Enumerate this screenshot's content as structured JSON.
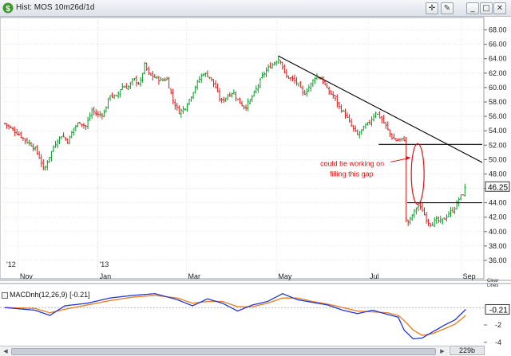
{
  "window": {
    "title": "Hist: MOS 10m26d/1d",
    "app_icon": "dollar-sign-icon",
    "toolbar": [
      {
        "name": "crosshair-icon",
        "glyph": "✛"
      },
      {
        "name": "paint-brush-icon",
        "glyph": "✎"
      },
      {
        "name": "minimize-icon",
        "glyph": "_"
      },
      {
        "name": "maximize-icon",
        "glyph": "□"
      },
      {
        "name": "close-icon",
        "glyph": "✕"
      }
    ]
  },
  "price_axis": {
    "ticks": [
      36,
      38,
      40,
      42,
      44,
      46,
      48,
      50,
      52,
      54,
      56,
      58,
      60,
      62,
      64,
      66,
      68
    ],
    "tick_labels": [
      "36.00",
      "38.00",
      "40.00",
      "42.00",
      "44.00",
      "46.00",
      "48.00",
      "50.00",
      "52.00",
      "54.00",
      "56.00",
      "58.00",
      "60.00",
      "62.00",
      "64.00",
      "66.00",
      "68.00"
    ],
    "range": [
      35.0,
      69.5
    ],
    "last_price_label": "46.25",
    "last_price": 46.25,
    "clear_label": "Clear Lines"
  },
  "time_axis": {
    "labels": [
      {
        "text": "'12",
        "day": 0
      },
      {
        "text": "Nov",
        "day": 9
      },
      {
        "text": "'13",
        "day": 62
      },
      {
        "text": "Jan",
        "day": 62
      },
      {
        "text": "Mar",
        "day": 121
      },
      {
        "text": "May",
        "day": 181
      },
      {
        "text": "Jul",
        "day": 242
      },
      {
        "text": "Sep",
        "day": 304
      }
    ],
    "range_days": [
      0,
      318
    ]
  },
  "macd": {
    "legend_text": "MACDnh(12,26,9)",
    "legend_value": "[-0.21]",
    "value_label": "-0.21",
    "value": -0.21,
    "ticks": [
      -2,
      -4
    ],
    "tick_labels": [
      "-2",
      "-4"
    ],
    "range": [
      -4.2,
      2.4
    ],
    "macd_color": "#1f35d6",
    "signal_color": "#ef7b1a"
  },
  "annotation": {
    "text_line1": "could be working on",
    "text_line2": "filling this gap",
    "color": "#e01010"
  },
  "bar_count": "229b",
  "colors": {
    "up": "#0a9a2a",
    "down": "#d81c1c",
    "trendline": "#000000"
  },
  "chart_data": {
    "type": "ohlc",
    "symbol": "MOS",
    "x_unit": "days since chart start (Oct 2012)",
    "trendlines": [
      {
        "x": [
          182,
          318
        ],
        "y": [
          64.4,
          49.6
        ],
        "label": "downtrend"
      },
      {
        "x": [
          249,
          318
        ],
        "y": [
          52.1,
          52.1
        ],
        "label": "gap top"
      },
      {
        "x": [
          268,
          318
        ],
        "y": [
          44.0,
          44.0
        ],
        "label": "gap bottom"
      }
    ],
    "gap_ellipse": {
      "center_x": 275,
      "center_y": 48.0,
      "y_half": 4.2
    },
    "price_path": [
      [
        0,
        55.0
      ],
      [
        5,
        54.2
      ],
      [
        10,
        53.4
      ],
      [
        14,
        52.6
      ],
      [
        18,
        52.0
      ],
      [
        21,
        51.2
      ],
      [
        24,
        49.8
      ],
      [
        26,
        48.4
      ],
      [
        30,
        50.6
      ],
      [
        34,
        52.4
      ],
      [
        38,
        53.4
      ],
      [
        42,
        52.5
      ],
      [
        46,
        54.4
      ],
      [
        50,
        55.2
      ],
      [
        54,
        54.6
      ],
      [
        58,
        56.8
      ],
      [
        62,
        56.2
      ],
      [
        66,
        56.4
      ],
      [
        70,
        59.0
      ],
      [
        74,
        58.6
      ],
      [
        78,
        60.2
      ],
      [
        82,
        60.0
      ],
      [
        86,
        61.2
      ],
      [
        90,
        60.4
      ],
      [
        93,
        63.2
      ],
      [
        96,
        61.8
      ],
      [
        100,
        61.4
      ],
      [
        104,
        61.0
      ],
      [
        108,
        61.2
      ],
      [
        112,
        58.2
      ],
      [
        116,
        56.6
      ],
      [
        120,
        57.2
      ],
      [
        124,
        58.8
      ],
      [
        128,
        60.6
      ],
      [
        132,
        62.0
      ],
      [
        136,
        61.6
      ],
      [
        140,
        60.2
      ],
      [
        144,
        58.0
      ],
      [
        148,
        58.8
      ],
      [
        152,
        59.4
      ],
      [
        156,
        58.0
      ],
      [
        160,
        57.2
      ],
      [
        164,
        58.4
      ],
      [
        168,
        60.0
      ],
      [
        172,
        61.8
      ],
      [
        176,
        62.8
      ],
      [
        180,
        63.6
      ],
      [
        183,
        64.1
      ],
      [
        187,
        61.6
      ],
      [
        191,
        61.2
      ],
      [
        195,
        60.6
      ],
      [
        199,
        59.0
      ],
      [
        203,
        60.2
      ],
      [
        207,
        61.6
      ],
      [
        211,
        61.2
      ],
      [
        215,
        59.6
      ],
      [
        219,
        58.8
      ],
      [
        223,
        57.2
      ],
      [
        227,
        56.2
      ],
      [
        231,
        54.6
      ],
      [
        235,
        53.4
      ],
      [
        239,
        54.4
      ],
      [
        243,
        55.2
      ],
      [
        247,
        56.6
      ],
      [
        251,
        55.6
      ],
      [
        255,
        54.2
      ],
      [
        258,
        53.0
      ],
      [
        261,
        52.6
      ],
      [
        264,
        52.8
      ],
      [
        266,
        42.0
      ],
      [
        269,
        41.2
      ],
      [
        272,
        42.6
      ],
      [
        275,
        43.6
      ],
      [
        278,
        43.0
      ],
      [
        281,
        41.6
      ],
      [
        284,
        41.0
      ],
      [
        287,
        41.6
      ],
      [
        290,
        41.4
      ],
      [
        293,
        41.8
      ],
      [
        296,
        42.6
      ],
      [
        299,
        43.0
      ],
      [
        302,
        44.4
      ],
      [
        305,
        45.2
      ],
      [
        307,
        46.25
      ]
    ],
    "macd_path": [
      [
        0,
        0.0
      ],
      [
        20,
        -0.3
      ],
      [
        30,
        -0.9
      ],
      [
        40,
        0.2
      ],
      [
        55,
        0.5
      ],
      [
        70,
        1.1
      ],
      [
        85,
        1.4
      ],
      [
        100,
        1.6
      ],
      [
        115,
        0.9
      ],
      [
        125,
        0.2
      ],
      [
        135,
        1.0
      ],
      [
        145,
        0.5
      ],
      [
        155,
        -0.4
      ],
      [
        165,
        0.3
      ],
      [
        175,
        0.7
      ],
      [
        185,
        1.6
      ],
      [
        195,
        0.9
      ],
      [
        205,
        0.6
      ],
      [
        215,
        0.3
      ],
      [
        225,
        -0.3
      ],
      [
        235,
        -0.7
      ],
      [
        245,
        -0.3
      ],
      [
        255,
        -0.8
      ],
      [
        262,
        -1.1
      ],
      [
        266,
        -2.6
      ],
      [
        272,
        -3.6
      ],
      [
        278,
        -3.5
      ],
      [
        285,
        -2.8
      ],
      [
        292,
        -2.1
      ],
      [
        300,
        -1.4
      ],
      [
        307,
        -0.21
      ]
    ],
    "signal_path": [
      [
        0,
        0.0
      ],
      [
        20,
        -0.1
      ],
      [
        30,
        -0.6
      ],
      [
        40,
        -0.2
      ],
      [
        55,
        0.3
      ],
      [
        70,
        0.8
      ],
      [
        85,
        1.2
      ],
      [
        100,
        1.4
      ],
      [
        115,
        1.1
      ],
      [
        125,
        0.5
      ],
      [
        135,
        0.7
      ],
      [
        145,
        0.7
      ],
      [
        155,
        0.1
      ],
      [
        165,
        0.1
      ],
      [
        175,
        0.5
      ],
      [
        185,
        1.1
      ],
      [
        195,
        1.1
      ],
      [
        205,
        0.7
      ],
      [
        215,
        0.4
      ],
      [
        225,
        0.0
      ],
      [
        235,
        -0.4
      ],
      [
        245,
        -0.5
      ],
      [
        255,
        -0.6
      ],
      [
        262,
        -0.9
      ],
      [
        266,
        -1.5
      ],
      [
        272,
        -2.6
      ],
      [
        278,
        -3.2
      ],
      [
        285,
        -3.0
      ],
      [
        292,
        -2.5
      ],
      [
        300,
        -1.9
      ],
      [
        307,
        -0.9
      ]
    ]
  }
}
